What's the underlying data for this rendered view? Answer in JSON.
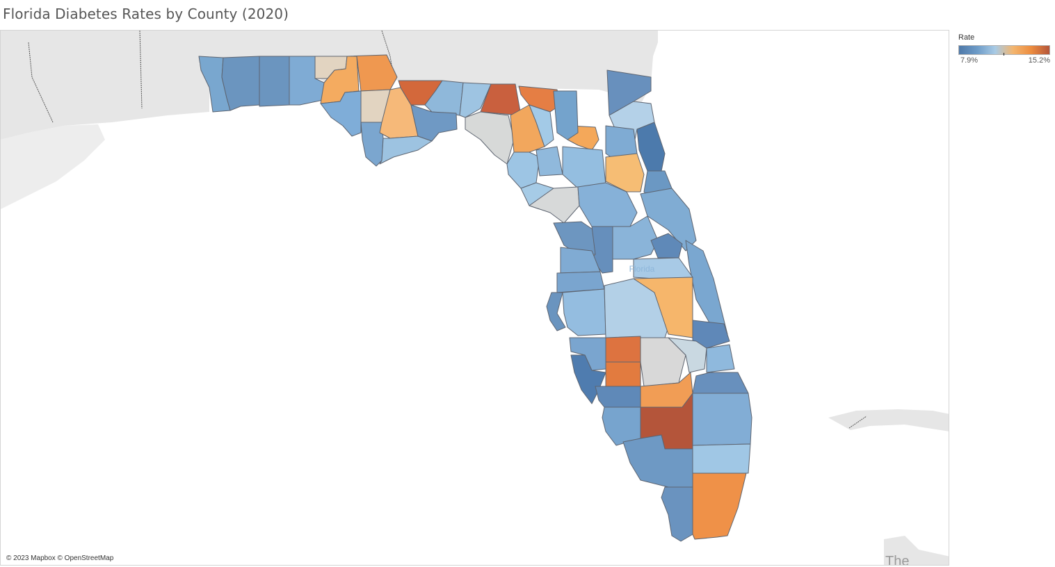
{
  "title": "Florida Diabetes Rates by County (2020)",
  "map": {
    "region_label": "Florida",
    "corner_label": "The",
    "attribution": "© 2023 Mapbox © OpenStreetMap",
    "colors": {
      "ocean": "#ffffff",
      "land": "#e6e6e6",
      "land_alt": "#ededed",
      "border_line": "#555555"
    }
  },
  "legend": {
    "title": "Rate",
    "min_label": "7.9%",
    "max_label": "15.2%",
    "min_value": 7.9,
    "max_value": 15.2,
    "gradient": [
      "#4f79a9",
      "#6d9bc7",
      "#a8cae5",
      "#f3b56e",
      "#ec8c3f",
      "#b4553a"
    ]
  },
  "counties": [
    {
      "id": "escambia",
      "fill": "#79a7cf"
    },
    {
      "id": "santa-rosa",
      "fill": "#6b95bf"
    },
    {
      "id": "okaloosa",
      "fill": "#6b95bf"
    },
    {
      "id": "walton",
      "fill": "#7fabd4"
    },
    {
      "id": "holmes",
      "fill": "#e2d4c1"
    },
    {
      "id": "washington",
      "fill": "#f4ab60"
    },
    {
      "id": "jackson",
      "fill": "#ef9850"
    },
    {
      "id": "bay",
      "fill": "#7fadd8"
    },
    {
      "id": "calhoun",
      "fill": "#e2d4c1"
    },
    {
      "id": "gulf",
      "fill": "#7ba6cf"
    },
    {
      "id": "liberty",
      "fill": "#f6b979"
    },
    {
      "id": "franklin",
      "fill": "#9dc3e1"
    },
    {
      "id": "gadsden",
      "fill": "#d3683b"
    },
    {
      "id": "leon",
      "fill": "#8fb8da"
    },
    {
      "id": "wakulla",
      "fill": "#6f99c4"
    },
    {
      "id": "jefferson",
      "fill": "#9ec4e2"
    },
    {
      "id": "madison",
      "fill": "#c9603e"
    },
    {
      "id": "hamilton",
      "fill": "#e57e44"
    },
    {
      "id": "taylor",
      "fill": "#d7d9d8"
    },
    {
      "id": "suwannee",
      "fill": "#f2a75d"
    },
    {
      "id": "lafayette",
      "fill": "#9dc5e4"
    },
    {
      "id": "columbia",
      "fill": "#a3cae7"
    },
    {
      "id": "baker",
      "fill": "#f4a85a"
    },
    {
      "id": "nassau",
      "fill": "#6890bd"
    },
    {
      "id": "duval",
      "fill": "#b4d1e8"
    },
    {
      "id": "dixie",
      "fill": "#a6cbe6"
    },
    {
      "id": "gilchrist",
      "fill": "#90b9dc"
    },
    {
      "id": "alachua",
      "fill": "#94bee0"
    },
    {
      "id": "union-bradford",
      "fill": "#74a3cc"
    },
    {
      "id": "clay",
      "fill": "#7fabd3"
    },
    {
      "id": "st-johns",
      "fill": "#4c7aac"
    },
    {
      "id": "putnam",
      "fill": "#f6bd74"
    },
    {
      "id": "flagler",
      "fill": "#6b98c3"
    },
    {
      "id": "levy",
      "fill": "#d7d9d9"
    },
    {
      "id": "marion",
      "fill": "#86b1d8"
    },
    {
      "id": "volusia",
      "fill": "#80acd3"
    },
    {
      "id": "citrus",
      "fill": "#6d96c0"
    },
    {
      "id": "sumter",
      "fill": "#668fbc"
    },
    {
      "id": "lake",
      "fill": "#8ab4d9"
    },
    {
      "id": "seminole",
      "fill": "#5f89b8"
    },
    {
      "id": "brevard",
      "fill": "#7aa7d0"
    },
    {
      "id": "hernando",
      "fill": "#80abd3"
    },
    {
      "id": "pasco",
      "fill": "#7aa5cf"
    },
    {
      "id": "orange",
      "fill": "#a8cae6"
    },
    {
      "id": "pinellas",
      "fill": "#6a94bf"
    },
    {
      "id": "hillsborough",
      "fill": "#94bde0"
    },
    {
      "id": "polk",
      "fill": "#b3d0e7"
    },
    {
      "id": "osceola",
      "fill": "#f6b66b"
    },
    {
      "id": "indian-river",
      "fill": "#5f88b8"
    },
    {
      "id": "manatee",
      "fill": "#7aa5cf"
    },
    {
      "id": "hardee",
      "fill": "#dd7340"
    },
    {
      "id": "highlands",
      "fill": "#d8d8d8"
    },
    {
      "id": "okeechobee",
      "fill": "#c9d8e1"
    },
    {
      "id": "st-lucie",
      "fill": "#8fb9dd"
    },
    {
      "id": "sarasota",
      "fill": "#4f7caf"
    },
    {
      "id": "desoto",
      "fill": "#e27b3f"
    },
    {
      "id": "charlotte",
      "fill": "#5f89b8"
    },
    {
      "id": "glades",
      "fill": "#f19d55"
    },
    {
      "id": "martin",
      "fill": "#6890bd"
    },
    {
      "id": "lee",
      "fill": "#77a4ce"
    },
    {
      "id": "hendry",
      "fill": "#b4553a"
    },
    {
      "id": "palm-beach",
      "fill": "#82add5"
    },
    {
      "id": "collier",
      "fill": "#6e99c4"
    },
    {
      "id": "broward",
      "fill": "#a0c7e5"
    },
    {
      "id": "monroe",
      "fill": "#6a93bf"
    },
    {
      "id": "miami-dade",
      "fill": "#ef9148"
    }
  ]
}
